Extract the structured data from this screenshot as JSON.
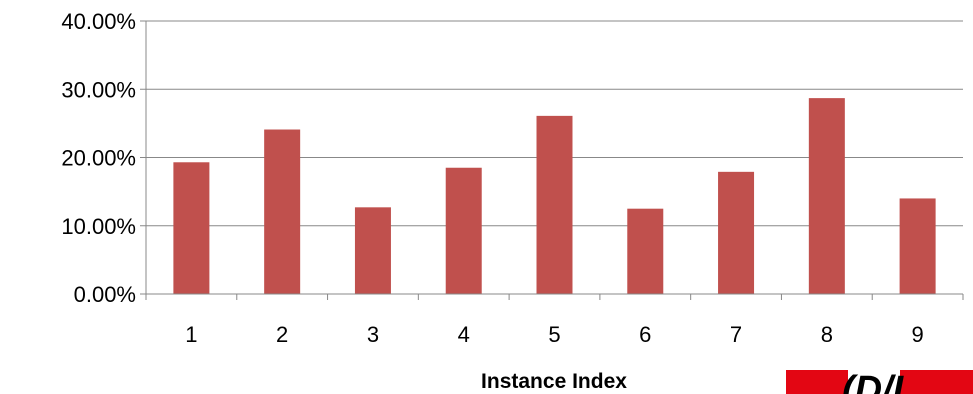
{
  "chart_data": {
    "type": "bar",
    "categories": [
      "1",
      "2",
      "3",
      "4",
      "5",
      "6",
      "7",
      "8",
      "9"
    ],
    "values": [
      0.193,
      0.241,
      0.127,
      0.185,
      0.261,
      0.125,
      0.179,
      0.287,
      0.14
    ],
    "ylim": [
      0,
      0.4
    ],
    "yticks": [
      0,
      0.1,
      0.2,
      0.3,
      0.4
    ],
    "ytick_labels": [
      "0.00%",
      "10.00%",
      "20.00%",
      "30.00%",
      "40.00%"
    ],
    "xlabel": "Instance Index",
    "ylabel": "",
    "title": "",
    "grid": true,
    "legend": "none",
    "bar_color": "#C0504D",
    "logo_text": "(D/I"
  }
}
